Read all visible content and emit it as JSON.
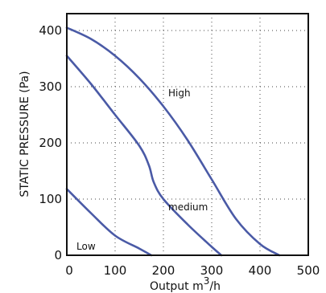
{
  "chart_data": {
    "type": "line",
    "title": "",
    "xlabel": "Output m",
    "xlabel_superscript": "3",
    "xlabel_suffix": "/h",
    "ylabel": "STATIC PRESSURE (Pa)",
    "xlim": [
      0,
      500
    ],
    "ylim": [
      0,
      430
    ],
    "xticks": [
      0,
      100,
      200,
      300,
      400,
      500
    ],
    "yticks": [
      0,
      100,
      200,
      300,
      400
    ],
    "grid": true,
    "series_color": "#4a5aa6",
    "series": [
      {
        "name": "High",
        "x": [
          0,
          50,
          100,
          150,
          200,
          250,
          300,
          350,
          400,
          440
        ],
        "y": [
          405,
          385,
          355,
          315,
          265,
          205,
          135,
          65,
          20,
          0
        ]
      },
      {
        "name": "medium",
        "x": [
          0,
          50,
          100,
          150,
          170,
          180,
          200,
          250,
          300,
          320
        ],
        "y": [
          355,
          305,
          250,
          195,
          160,
          130,
          100,
          55,
          15,
          0
        ]
      },
      {
        "name": "Low",
        "x": [
          0,
          50,
          100,
          150,
          175
        ],
        "y": [
          118,
          75,
          35,
          12,
          0
        ]
      }
    ]
  }
}
